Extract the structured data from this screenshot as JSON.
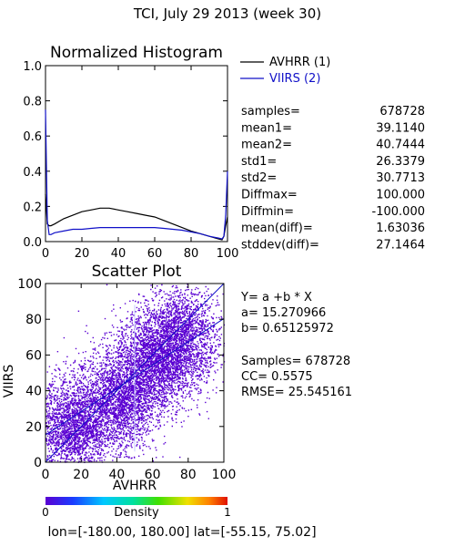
{
  "page_title": "TCI,  July 29 2013 (week 30)",
  "histogram": {
    "title": "Normalized Histogram",
    "legend": [
      {
        "label": "AVHRR (1)",
        "color": "#000000"
      },
      {
        "label": "VIIRS (2)",
        "color": "#1010c8"
      }
    ]
  },
  "scatter": {
    "title": "Scatter Plot",
    "xlabel": "AVHRR",
    "ylabel": "VIIRS"
  },
  "stats": [
    {
      "label": "samples=",
      "value": "678728"
    },
    {
      "label": "mean1=",
      "value": "39.1140"
    },
    {
      "label": "mean2=",
      "value": "40.7444"
    },
    {
      "label": "std1=",
      "value": "26.3379"
    },
    {
      "label": "std2=",
      "value": "30.7713"
    },
    {
      "label": "Diffmax=",
      "value": "100.000"
    },
    {
      "label": "Diffmin=",
      "value": "-100.000"
    },
    {
      "label": "mean(diff)=",
      "value": "1.63036"
    },
    {
      "label": "stddev(diff)=",
      "value": "27.1464"
    }
  ],
  "regression": {
    "equation": "Y= a +b * X",
    "a": "a= 15.270966",
    "b": "b= 0.65125972",
    "samples": "Samples= 678728",
    "cc": "CC=  0.5575",
    "rmse": "RMSE= 25.545161"
  },
  "colorbar": {
    "label": "Density",
    "min_label": "0",
    "max_label": "1"
  },
  "footer": "lon=[-180.00, 180.00] lat=[-55.15, 75.02]",
  "chart_data": [
    {
      "type": "line",
      "title": "Normalized Histogram",
      "xlim": [
        0,
        100
      ],
      "ylim": [
        0,
        1
      ],
      "x_ticks": [
        0,
        20,
        40,
        60,
        80,
        100
      ],
      "y_ticks": [
        "0.0",
        "0.2",
        "0.4",
        "0.6",
        "0.8",
        "1.0"
      ],
      "x": [
        0,
        1,
        2,
        3,
        5,
        10,
        15,
        20,
        25,
        30,
        35,
        40,
        45,
        50,
        55,
        60,
        65,
        70,
        75,
        80,
        85,
        90,
        95,
        97,
        98,
        99,
        100
      ],
      "series": [
        {
          "name": "AVHRR (1)",
          "color": "#000000",
          "values": [
            0.27,
            0.1,
            0.09,
            0.09,
            0.1,
            0.13,
            0.15,
            0.17,
            0.18,
            0.19,
            0.19,
            0.18,
            0.17,
            0.16,
            0.15,
            0.14,
            0.12,
            0.1,
            0.08,
            0.06,
            0.045,
            0.03,
            0.015,
            0.01,
            0.03,
            0.09,
            0.14
          ]
        },
        {
          "name": "VIIRS (2)",
          "color": "#1010c8",
          "values": [
            0.75,
            0.12,
            0.04,
            0.04,
            0.05,
            0.06,
            0.07,
            0.07,
            0.075,
            0.08,
            0.08,
            0.08,
            0.08,
            0.08,
            0.08,
            0.08,
            0.075,
            0.07,
            0.065,
            0.055,
            0.045,
            0.03,
            0.02,
            0.015,
            0.03,
            0.15,
            0.4
          ]
        }
      ]
    },
    {
      "type": "scatter",
      "title": "Scatter Plot",
      "xlabel": "AVHRR",
      "ylabel": "VIIRS",
      "xlim": [
        0,
        100
      ],
      "ylim": [
        0,
        100
      ],
      "x_ticks": [
        0,
        20,
        40,
        60,
        80,
        100
      ],
      "y_ticks": [
        0,
        20,
        40,
        60,
        80,
        100
      ],
      "point_color": "#5a00d2",
      "density_cloud": {
        "centers": [
          [
            15,
            20
          ],
          [
            40,
            35
          ],
          [
            60,
            55
          ],
          [
            75,
            70
          ]
        ],
        "spread": [
          11,
          14
        ]
      },
      "lines": [
        {
          "name": "1:1",
          "x": [
            0,
            100
          ],
          "y": [
            0,
            100
          ],
          "color": "#1010c8"
        },
        {
          "name": "fit",
          "intercept": 15.270966,
          "slope": 0.65125972,
          "color": "#1010c8"
        }
      ]
    }
  ]
}
